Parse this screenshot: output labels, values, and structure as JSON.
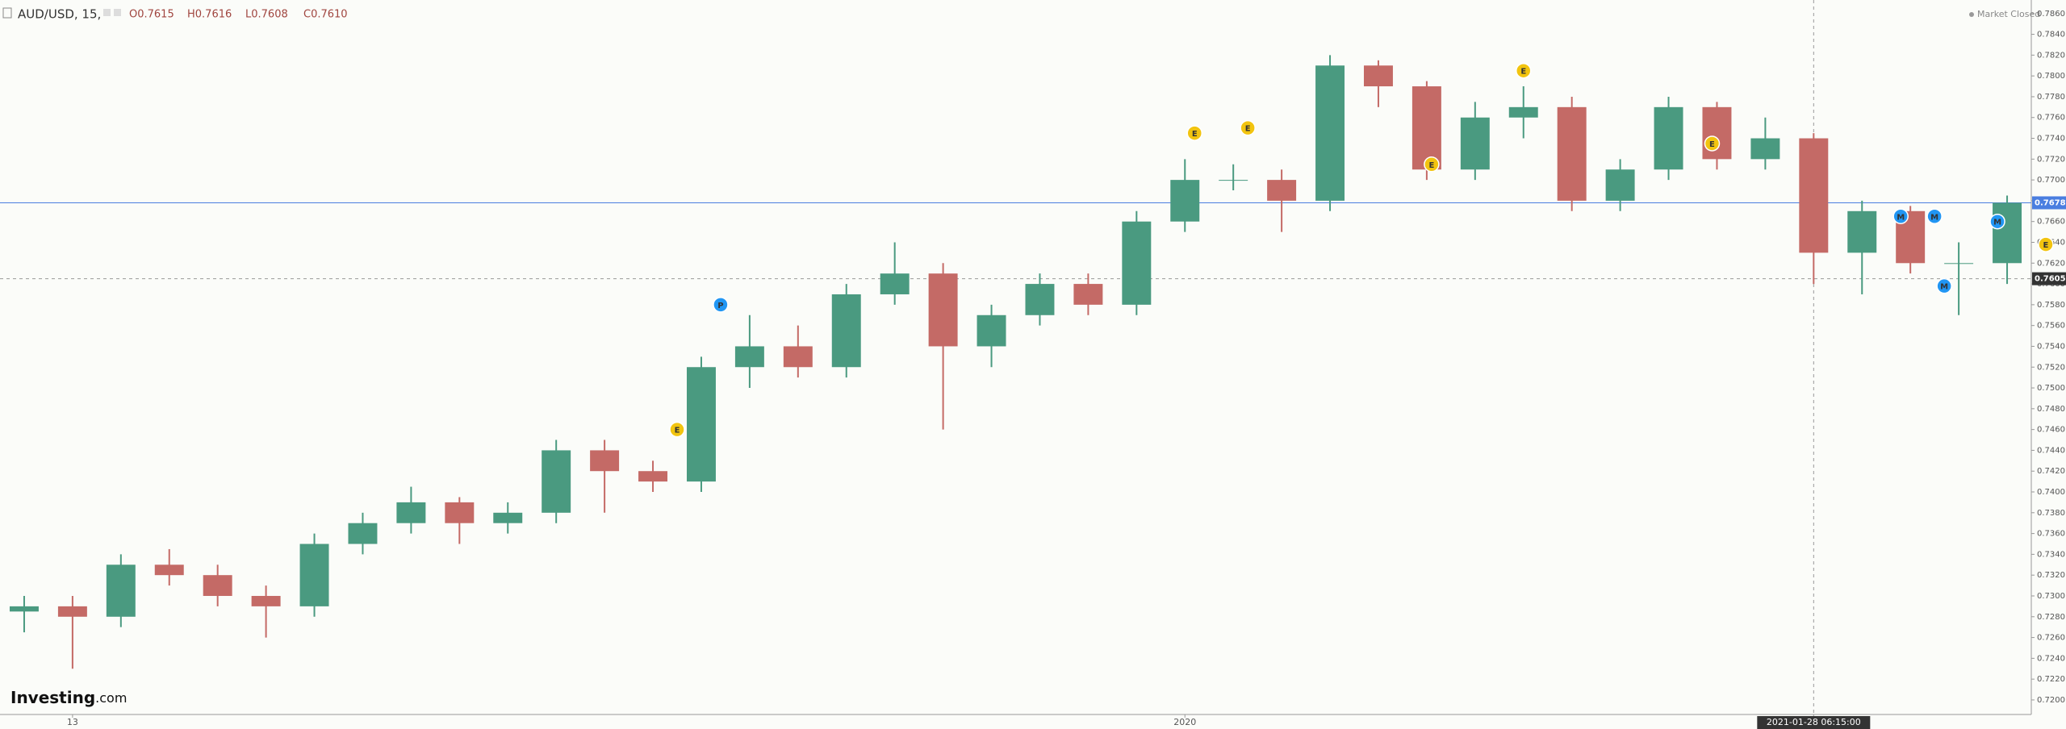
{
  "chart_data": {
    "type": "candlestick",
    "header": {
      "symbol": "AUD/USD, 15,",
      "ohlc": [
        "O0.7615",
        "H0.7616",
        "L0.7608",
        "C0.7610"
      ],
      "status": "Market Closed"
    },
    "logo": {
      "brand": "Investing",
      "suffix": ".com"
    },
    "categories": [
      null,
      "13",
      null,
      null,
      null,
      null,
      null,
      null,
      null,
      null,
      null,
      null,
      null,
      null,
      null,
      null,
      null,
      null,
      null,
      null,
      null,
      null,
      null,
      null,
      "2020",
      null,
      null,
      null,
      null,
      null,
      null,
      null,
      null,
      null,
      null,
      null,
      null,
      "2021-01-28 06:15:00",
      null,
      null,
      null,
      null
    ],
    "open": [
      0.7285,
      0.729,
      0.728,
      0.733,
      0.732,
      0.73,
      0.729,
      0.735,
      0.737,
      0.739,
      0.737,
      0.738,
      0.744,
      0.742,
      0.741,
      0.752,
      0.754,
      0.752,
      0.759,
      0.761,
      0.754,
      0.757,
      0.76,
      0.758,
      0.766,
      0.77,
      0.77,
      0.768,
      0.781,
      0.779,
      0.771,
      0.776,
      0.777,
      0.768,
      0.771,
      0.777,
      0.772,
      0.774,
      0.763,
      0.767,
      0.762,
      0.762
    ],
    "high": [
      0.73,
      0.73,
      0.734,
      0.7345,
      0.733,
      0.731,
      0.736,
      0.738,
      0.7405,
      0.7395,
      0.739,
      0.745,
      0.745,
      0.743,
      0.753,
      0.757,
      0.756,
      0.76,
      0.764,
      0.762,
      0.758,
      0.761,
      0.761,
      0.767,
      0.772,
      0.7715,
      0.771,
      0.782,
      0.7815,
      0.7795,
      0.7775,
      0.779,
      0.778,
      0.772,
      0.778,
      0.7775,
      0.776,
      0.7745,
      0.768,
      0.7675,
      0.764,
      0.7685
    ],
    "low": [
      0.7265,
      0.723,
      0.727,
      0.731,
      0.729,
      0.726,
      0.728,
      0.734,
      0.736,
      0.735,
      0.736,
      0.737,
      0.738,
      0.74,
      0.74,
      0.75,
      0.751,
      0.751,
      0.758,
      0.746,
      0.752,
      0.756,
      0.757,
      0.757,
      0.765,
      0.769,
      0.765,
      0.767,
      0.777,
      0.77,
      0.77,
      0.774,
      0.767,
      0.767,
      0.77,
      0.771,
      0.771,
      0.76,
      0.759,
      0.761,
      0.757,
      0.76
    ],
    "close": [
      0.729,
      0.728,
      0.733,
      0.732,
      0.73,
      0.729,
      0.735,
      0.737,
      0.739,
      0.737,
      0.738,
      0.744,
      0.742,
      0.741,
      0.752,
      0.754,
      0.752,
      0.759,
      0.761,
      0.754,
      0.757,
      0.76,
      0.758,
      0.766,
      0.77,
      0.77,
      0.768,
      0.781,
      0.779,
      0.771,
      0.776,
      0.777,
      0.768,
      0.771,
      0.777,
      0.772,
      0.774,
      0.763,
      0.767,
      0.762,
      0.762,
      0.7678
    ],
    "up_color": "#4a9a80",
    "down_color": "#c46a66",
    "ylim": [
      0.7186,
      0.7873
    ],
    "yticks": [
      {
        "value": 0.72,
        "label": "0.7200"
      },
      {
        "value": 0.722,
        "label": "0.7220"
      },
      {
        "value": 0.724,
        "label": "0.7240"
      },
      {
        "value": 0.726,
        "label": "0.7260"
      },
      {
        "value": 0.728,
        "label": "0.7280"
      },
      {
        "value": 0.73,
        "label": "0.7300"
      },
      {
        "value": 0.732,
        "label": "0.7320"
      },
      {
        "value": 0.734,
        "label": "0.7340"
      },
      {
        "value": 0.736,
        "label": "0.7360"
      },
      {
        "value": 0.738,
        "label": "0.7380"
      },
      {
        "value": 0.74,
        "label": "0.7400"
      },
      {
        "value": 0.742,
        "label": "0.7420"
      },
      {
        "value": 0.744,
        "label": "0.7440"
      },
      {
        "value": 0.746,
        "label": "0.7460"
      },
      {
        "value": 0.748,
        "label": "0.7480"
      },
      {
        "value": 0.75,
        "label": "0.7500"
      },
      {
        "value": 0.752,
        "label": "0.7520"
      },
      {
        "value": 0.754,
        "label": "0.7540"
      },
      {
        "value": 0.756,
        "label": "0.7560"
      },
      {
        "value": 0.758,
        "label": "0.7580"
      },
      {
        "value": 0.76,
        "label": "0.7600"
      },
      {
        "value": 0.762,
        "label": "0.7620"
      },
      {
        "value": 0.764,
        "label": "0.7640"
      },
      {
        "value": 0.766,
        "label": "0.7660"
      },
      {
        "value": 0.768,
        "label": "0.7680"
      },
      {
        "value": 0.77,
        "label": "0.7700"
      },
      {
        "value": 0.772,
        "label": "0.7720"
      },
      {
        "value": 0.774,
        "label": "0.7740"
      },
      {
        "value": 0.776,
        "label": "0.7760"
      },
      {
        "value": 0.778,
        "label": "0.7780"
      },
      {
        "value": 0.78,
        "label": "0.7800"
      },
      {
        "value": 0.782,
        "label": "0.7820"
      },
      {
        "value": 0.784,
        "label": "0.7840"
      },
      {
        "value": 0.786,
        "label": "0.7860"
      }
    ],
    "grid": false,
    "last_price": {
      "value": 0.7678,
      "color": "#4a7ee0"
    },
    "crosshair": {
      "x": "2021-01-28 06:15:00",
      "y": 0.7605
    },
    "events": [
      {
        "label": "P",
        "x": 14.4,
        "y": 0.758,
        "color": "#2196f3"
      },
      {
        "label": "E",
        "x": 13.5,
        "y": 0.746,
        "color": "#f2c40f"
      },
      {
        "label": "E",
        "x": 24.2,
        "y": 0.7745,
        "color": "#f2c40f"
      },
      {
        "label": "E",
        "x": 25.3,
        "y": 0.775,
        "color": "#f2c40f"
      },
      {
        "label": "E",
        "x": 29.1,
        "y": 0.7715,
        "color": "#f2c40f"
      },
      {
        "label": "E",
        "x": 31.0,
        "y": 0.7805,
        "color": "#f2c40f"
      },
      {
        "label": "E",
        "x": 34.9,
        "y": 0.7735,
        "color": "#f2c40f"
      },
      {
        "label": "M",
        "x": 38.8,
        "y": 0.7665,
        "color": "#2196f3"
      },
      {
        "label": "M",
        "x": 39.5,
        "y": 0.7665,
        "color": "#2196f3"
      },
      {
        "label": "M",
        "x": 39.7,
        "y": 0.7598,
        "color": "#2196f3"
      },
      {
        "label": "M",
        "x": 40.8,
        "y": 0.766,
        "color": "#2196f3"
      },
      {
        "label": "E",
        "x": 41.8,
        "y": 0.7638,
        "color": "#f2c40f"
      }
    ]
  }
}
